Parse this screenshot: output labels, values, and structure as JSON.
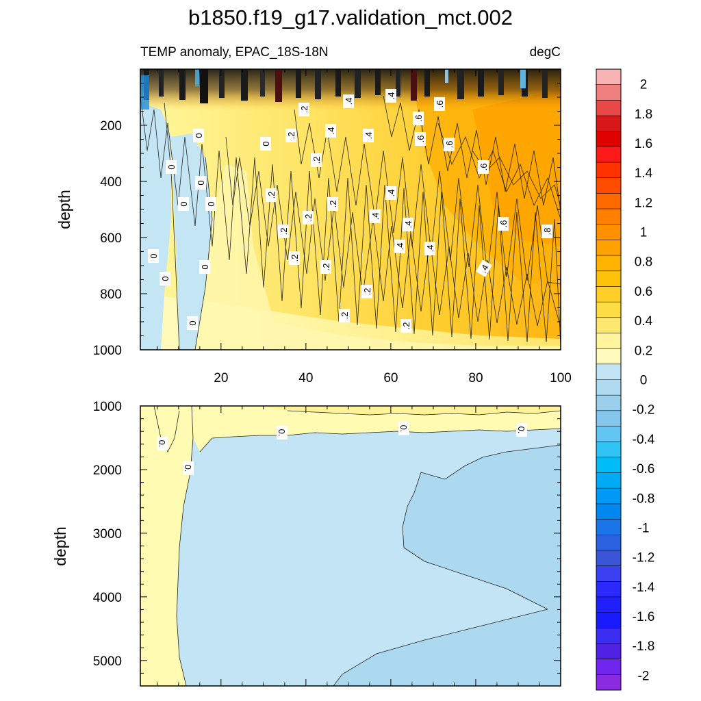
{
  "chart_data": {
    "type": "heatmap",
    "title": "b1850.f19_g17.validation_mct.002",
    "subtitle_left": "TEMP anomaly, EPAC_18S-18N",
    "subtitle_right": "degC",
    "ylabel": "depth",
    "xlim": [
      1,
      100
    ],
    "x_ticks": [
      "20",
      "40",
      "60",
      "80",
      "100"
    ],
    "colorbar": {
      "min": -2.1,
      "max": 2.1,
      "step": 0.1,
      "labels": [
        "2",
        "1.8",
        "1.6",
        "1.4",
        "1.2",
        "1",
        "0.8",
        "0.6",
        "0.4",
        "0.2",
        "0",
        "-0.2",
        "-0.4",
        "-0.6",
        "-0.8",
        "-1",
        "-1.2",
        "-1.4",
        "-1.6",
        "-1.8",
        "-2"
      ],
      "colors": [
        "#f7b3b3",
        "#f08080",
        "#e84848",
        "#d81818",
        "#e00000",
        "#ff1a1a",
        "#ff3300",
        "#ff4d00",
        "#ff6a00",
        "#ff8000",
        "#ff9000",
        "#ffa200",
        "#ffb200",
        "#ffc20a",
        "#ffcf28",
        "#ffdd45",
        "#ffe870",
        "#fff59f",
        "#fffbbf",
        "#c3e4f4",
        "#afdaf0",
        "#9ccfec",
        "#85c6ed",
        "#63c5f3",
        "#2fc4f4",
        "#00bcf7",
        "#00aaf5",
        "#0099f5",
        "#0087f0",
        "#1a75e8",
        "#2b62e0",
        "#3a55d8",
        "#3b40f0",
        "#2a2aff",
        "#2020ff",
        "#1a1aff",
        "#3a2cf0",
        "#5022e6",
        "#6f25ee",
        "#8a2be2"
      ]
    },
    "panels": [
      {
        "name": "upper",
        "depth_range": [
          0,
          1000
        ],
        "y_ticks": [
          "200",
          "400",
          "600",
          "800",
          "1000"
        ],
        "description_values": {
          "west_min": -0.1,
          "east_max": 0.9,
          "surface_min": -0.9,
          "surface_max": 1.0
        },
        "contour_labels": [
          "0",
          "0",
          "0",
          "0",
          "0",
          "0",
          "0",
          "0",
          "0",
          "0",
          "0",
          ".2",
          ".2",
          ".2",
          ".2",
          ".2",
          ".2",
          ".2",
          ".2",
          ".2",
          ".2",
          ".2",
          ".2",
          ".2",
          ".4",
          ".4",
          ".4",
          ".4",
          ".4",
          ".4",
          ".4",
          ".4",
          ".4",
          ".4",
          ".6",
          ".6",
          ".6",
          ".6",
          ".6",
          ".6",
          ".8"
        ]
      },
      {
        "name": "lower",
        "depth_range": [
          1000,
          5400
        ],
        "y_ticks": [
          "1000",
          "2000",
          "3000",
          "4000",
          "5000"
        ],
        "description_values": {
          "west_band": 0.05,
          "interior": -0.1,
          "east_tongue": -0.2,
          "top_band": 0.05
        },
        "contour_labels": [
          "0.",
          "0.",
          "0.",
          "0.",
          "0."
        ]
      }
    ]
  }
}
